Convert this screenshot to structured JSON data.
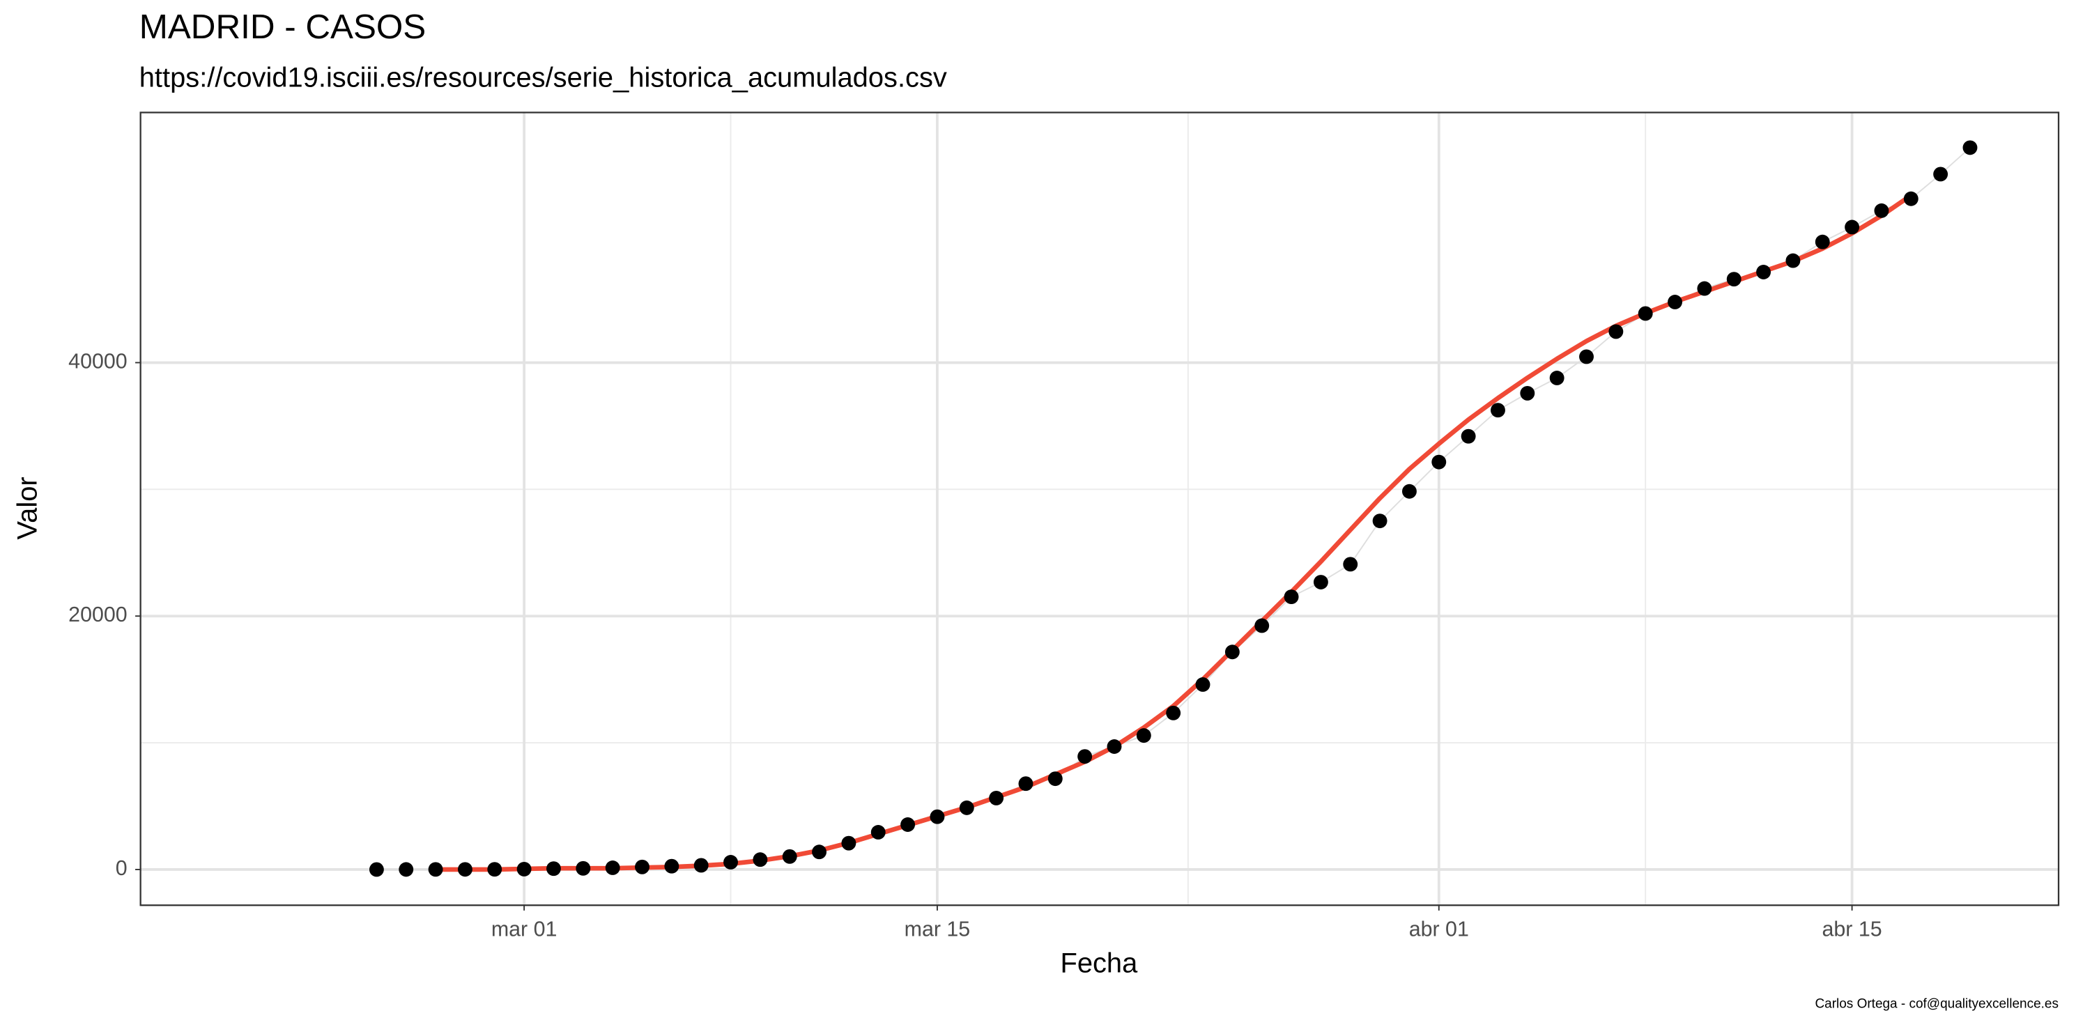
{
  "chart_data": {
    "type": "scatter",
    "title": "MADRID - CASOS",
    "subtitle": "https://covid19.isciii.es/resources/serie_historica_acumulados.csv",
    "x_label": "Fecha",
    "y_label": "Valor",
    "caption": "Carlos Ortega - cof@qualityexcellence.es",
    "grid": true,
    "x": [
      "02-25",
      "02-26",
      "02-27",
      "02-28",
      "02-29",
      "03-01",
      "03-02",
      "03-03",
      "03-04",
      "03-05",
      "03-06",
      "03-07",
      "03-08",
      "03-09",
      "03-10",
      "03-11",
      "03-12",
      "03-13",
      "03-14",
      "03-15",
      "03-16",
      "03-17",
      "03-18",
      "03-19",
      "03-20",
      "03-21",
      "03-22",
      "03-23",
      "03-24",
      "03-25",
      "03-26",
      "03-27",
      "03-28",
      "03-29",
      "03-30",
      "03-31",
      "04-01",
      "04-02",
      "04-03",
      "04-04",
      "04-05",
      "04-06",
      "04-07",
      "04-08",
      "04-09",
      "04-10",
      "04-11",
      "04-12",
      "04-13",
      "04-14",
      "04-15",
      "04-16",
      "04-17",
      "04-18",
      "04-19"
    ],
    "series": [
      {
        "mode": "points",
        "color": "#000000",
        "line_color": "#dedede",
        "values": [
          0,
          5,
          8,
          10,
          15,
          29,
          70,
          90,
          137,
          202,
          261,
          330,
          577,
          782,
          1024,
          1388,
          2078,
          2940,
          3544,
          4165,
          4871,
          5637,
          6777,
          7165,
          8921,
          9702,
          10575,
          12352,
          14597,
          17166,
          19243,
          21520,
          22677,
          24090,
          27509,
          29840,
          32155,
          34188,
          36249,
          37584,
          38790,
          40469,
          42450,
          43877,
          44783,
          45849,
          46587,
          47146,
          48048,
          49526,
          50694,
          51993,
          52933,
          54874,
          56966
        ]
      },
      {
        "mode": "line",
        "color": "#f04a36",
        "values": [
          null,
          null,
          0,
          0,
          0,
          50,
          100,
          100,
          100,
          150,
          200,
          300,
          450,
          700,
          1050,
          1500,
          2100,
          2800,
          3500,
          4200,
          4900,
          5700,
          6500,
          7500,
          8500,
          9700,
          11200,
          12900,
          15000,
          17300,
          19600,
          21900,
          24300,
          26800,
          29300,
          31600,
          33600,
          35500,
          37200,
          38800,
          40300,
          41700,
          42900,
          43900,
          44800,
          45600,
          46400,
          47200,
          48000,
          49000,
          50200,
          51600,
          53200,
          null,
          null
        ]
      }
    ],
    "xlim": [
      "02-17",
      "04-22"
    ],
    "xticks": [
      {
        "value": "03-01",
        "label": "mar 01"
      },
      {
        "value": "03-15",
        "label": "mar 15"
      },
      {
        "value": "04-01",
        "label": "abr 01"
      },
      {
        "value": "04-15",
        "label": "abr 15"
      }
    ],
    "ylim": [
      -2820,
      59740
    ],
    "yticks": [
      0,
      20000,
      40000
    ]
  }
}
